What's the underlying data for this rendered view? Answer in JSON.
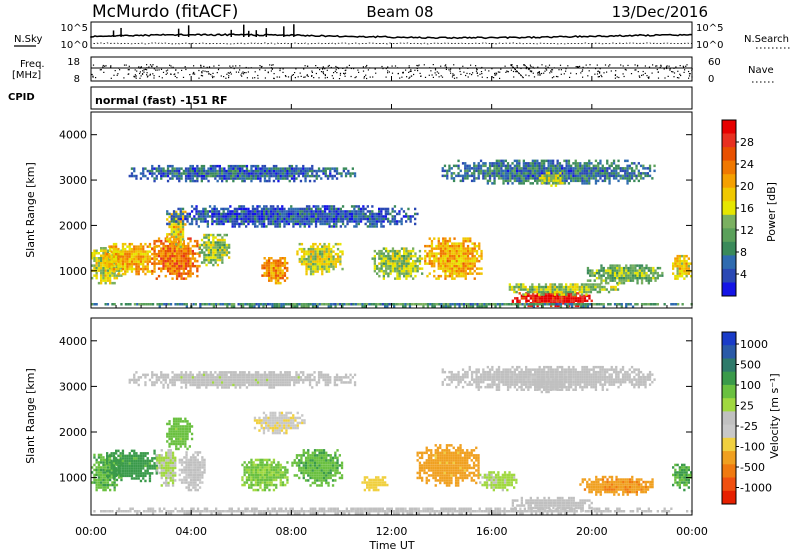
{
  "header": {
    "station": "McMurdo (fitACF)",
    "beam": "Beam 08",
    "date": "13/Dec/2016"
  },
  "noise_panel": {
    "left_label": "N.Sky",
    "right_label": "N.Search",
    "tick_top_left": "10^5",
    "tick_bottom_left": "10^0",
    "tick_top_right": "10^5",
    "tick_bottom_right": "10^0"
  },
  "freq_panel": {
    "left_label_1": "Freq.",
    "left_label_2": "[MHz]",
    "right_label": "Nave",
    "tick_left_top": "18",
    "tick_left_bottom": "8",
    "tick_right_top": "60",
    "tick_right_bottom": "0"
  },
  "cpid_panel": {
    "label": "CPID",
    "text": "normal (fast) -151 RF"
  },
  "power_panel": {
    "ylabel": "Slant Range [km]",
    "yticks": [
      "1000",
      "2000",
      "3000",
      "4000"
    ],
    "colorbar_label": "Power [dB]",
    "colorbar_ticks": [
      "4",
      "8",
      "12",
      "16",
      "20",
      "24",
      "28"
    ],
    "colorbar_colors": [
      "#1414e6",
      "#2a48b4",
      "#2f6bb0",
      "#3a8a5a",
      "#5aa05a",
      "#7ab060",
      "#e6e600",
      "#f0c800",
      "#f5a000",
      "#f07800",
      "#e85000",
      "#e83020",
      "#e60000"
    ]
  },
  "velocity_panel": {
    "ylabel": "Slant Range [km]",
    "yticks": [
      "1000",
      "2000",
      "3000",
      "4000"
    ],
    "colorbar_label": "Velocity [m s⁻¹]",
    "colorbar_ticks": [
      "1000",
      "500",
      "100",
      "25",
      "-25",
      "-100",
      "-500",
      "-1000"
    ],
    "colorbar_colors": [
      "#1a3cc8",
      "#2a5aa8",
      "#2e7a6a",
      "#3a9a4a",
      "#6ac040",
      "#a0d840",
      "#c0c0c0",
      "#c8c8c8",
      "#f0d040",
      "#f0a020",
      "#f07a10",
      "#f05010",
      "#e62000"
    ]
  },
  "xaxis": {
    "label": "Time UT",
    "ticks": [
      "00:00",
      "04:00",
      "08:00",
      "12:00",
      "16:00",
      "20:00",
      "00:00"
    ]
  },
  "chart_data": [
    {
      "type": "heatmap",
      "name": "power",
      "x_range_hours": [
        0,
        24
      ],
      "y_range_km": [
        180,
        4500
      ],
      "colorscale_db": [
        0,
        32
      ],
      "blobs": [
        {
          "t0": 0.0,
          "t1": 1.2,
          "r0": 700,
          "r1": 1500,
          "v": 16
        },
        {
          "t0": 0.6,
          "t1": 2.6,
          "r0": 900,
          "r1": 1600,
          "v": 20
        },
        {
          "t0": 2.4,
          "t1": 4.3,
          "r0": 800,
          "r1": 1700,
          "v": 24
        },
        {
          "t0": 3.0,
          "t1": 3.8,
          "r0": 1500,
          "r1": 2300,
          "v": 18
        },
        {
          "t0": 4.3,
          "t1": 5.5,
          "r0": 1100,
          "r1": 1800,
          "v": 14
        },
        {
          "t0": 6.8,
          "t1": 7.8,
          "r0": 700,
          "r1": 1300,
          "v": 22
        },
        {
          "t0": 8.2,
          "t1": 10.0,
          "r0": 900,
          "r1": 1600,
          "v": 16
        },
        {
          "t0": 11.2,
          "t1": 13.2,
          "r0": 800,
          "r1": 1500,
          "v": 14
        },
        {
          "t0": 13.3,
          "t1": 15.6,
          "r0": 800,
          "r1": 1700,
          "v": 20
        },
        {
          "t0": 16.8,
          "t1": 20.0,
          "r0": 200,
          "r1": 500,
          "v": 30
        },
        {
          "t0": 16.5,
          "t1": 21.0,
          "r0": 450,
          "r1": 700,
          "v": 14
        },
        {
          "t0": 19.8,
          "t1": 22.8,
          "r0": 700,
          "r1": 1100,
          "v": 12
        },
        {
          "t0": 23.2,
          "t1": 24.0,
          "r0": 800,
          "r1": 1300,
          "v": 18
        },
        {
          "t0": 1.5,
          "t1": 10.5,
          "r0": 2950,
          "r1": 3300,
          "v": 6
        },
        {
          "t0": 14.0,
          "t1": 22.5,
          "r0": 2900,
          "r1": 3400,
          "v": 7
        },
        {
          "t0": 17.8,
          "t1": 18.9,
          "r0": 2850,
          "r1": 3150,
          "v": 14
        },
        {
          "t0": 3.0,
          "t1": 13.0,
          "r0": 1950,
          "r1": 2400,
          "v": 5
        },
        {
          "t0": 0.0,
          "t1": 24.0,
          "r0": 180,
          "r1": 280,
          "v": 9
        }
      ]
    },
    {
      "type": "heatmap",
      "name": "velocity",
      "x_range_hours": [
        0,
        24
      ],
      "y_range_km": [
        180,
        4500
      ],
      "colorscale_ms": [
        -1000,
        1000
      ],
      "blobs": [
        {
          "t0": 0.0,
          "t1": 1.2,
          "r0": 700,
          "r1": 1500,
          "v": 350
        },
        {
          "t0": 0.6,
          "t1": 2.6,
          "r0": 900,
          "r1": 1600,
          "v": 450
        },
        {
          "t0": 2.6,
          "t1": 3.4,
          "r0": 800,
          "r1": 1600,
          "v": 80
        },
        {
          "t0": 3.5,
          "t1": 4.5,
          "r0": 700,
          "r1": 1600,
          "v": -60
        },
        {
          "t0": 3.0,
          "t1": 4.0,
          "r0": 1600,
          "r1": 2300,
          "v": 300
        },
        {
          "t0": 6.0,
          "t1": 7.8,
          "r0": 700,
          "r1": 1400,
          "v": 250
        },
        {
          "t0": 8.0,
          "t1": 10.0,
          "r0": 800,
          "r1": 1600,
          "v": 350
        },
        {
          "t0": 6.5,
          "t1": 8.5,
          "r0": 1950,
          "r1": 2400,
          "v": -200
        },
        {
          "t0": 10.8,
          "t1": 11.8,
          "r0": 700,
          "r1": 1000,
          "v": -300
        },
        {
          "t0": 13.0,
          "t1": 15.5,
          "r0": 800,
          "r1": 1700,
          "v": -450
        },
        {
          "t0": 15.5,
          "t1": 17.0,
          "r0": 700,
          "r1": 1100,
          "v": 120
        },
        {
          "t0": 16.8,
          "t1": 20.0,
          "r0": 250,
          "r1": 550,
          "v": 0
        },
        {
          "t0": 19.5,
          "t1": 22.5,
          "r0": 600,
          "r1": 1000,
          "v": -500
        },
        {
          "t0": 23.2,
          "t1": 24.0,
          "r0": 700,
          "r1": 1300,
          "v": 400
        },
        {
          "t0": 1.5,
          "t1": 10.5,
          "r0": 2950,
          "r1": 3300,
          "v": 10
        },
        {
          "t0": 14.0,
          "t1": 22.5,
          "r0": 2900,
          "r1": 3400,
          "v": -10
        },
        {
          "t0": 17.6,
          "t1": 18.9,
          "r0": 2850,
          "r1": 3150,
          "v": 0
        },
        {
          "t0": 0.0,
          "t1": 24.0,
          "r0": 180,
          "r1": 300,
          "v": -30
        }
      ]
    }
  ]
}
